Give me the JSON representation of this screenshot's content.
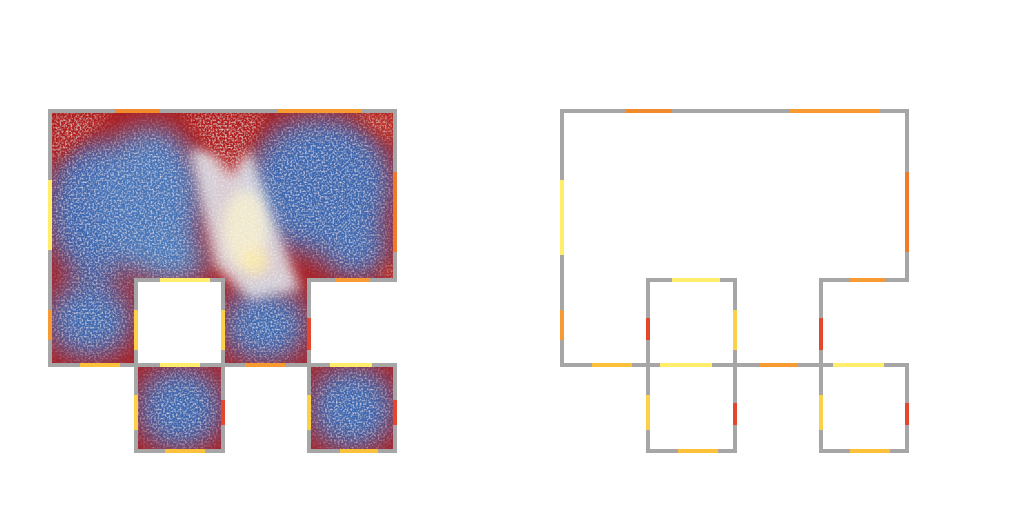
{
  "colors": {
    "background": "#ffffff",
    "wall": "#a6a6a6",
    "hot_red": "#b11a1a",
    "cool_blue": "#3c6cb4",
    "door_yellow": "#ffed6b",
    "door_gold": "#fcc13a",
    "door_orange": "#f08a2a",
    "door_red": "#e4472a"
  },
  "panels": [
    {
      "id": "heatmap-panel",
      "kind": "density-heatmap-floorplan"
    },
    {
      "id": "doors-panel",
      "kind": "floorplan-door-usage"
    }
  ]
}
